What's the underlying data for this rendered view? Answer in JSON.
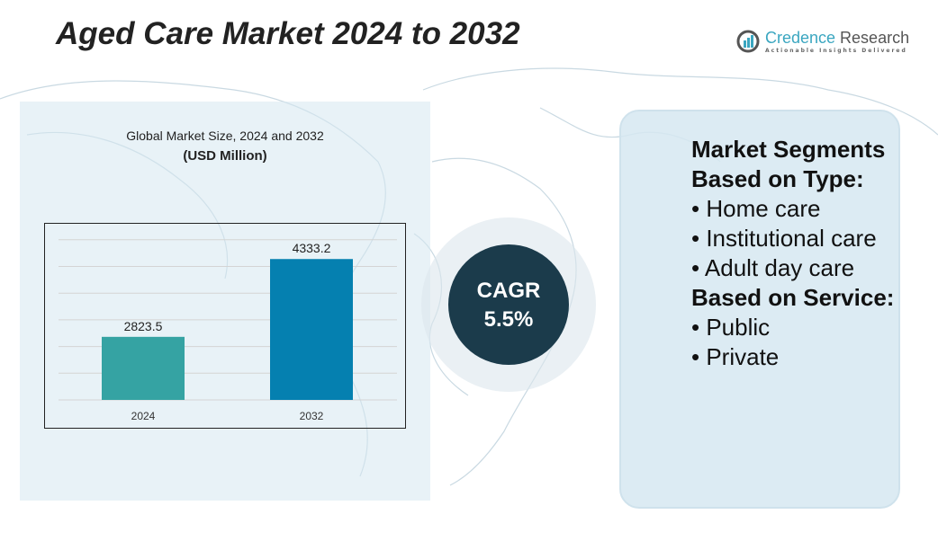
{
  "title": "Aged Care Market 2024 to 2032",
  "logo": {
    "name_a": "Credence",
    "name_b": " Research",
    "tagline": "Actionable Insights Delivered"
  },
  "cagr": {
    "label": "CAGR",
    "value": "5.5%"
  },
  "segments": {
    "heading": "Market Segments",
    "type_heading": "Based on Type:",
    "type_items": [
      "• Home care",
      "• Institutional care",
      "• Adult day care"
    ],
    "service_heading": "Based on Service:",
    "service_items": [
      "• Public",
      "• Private"
    ]
  },
  "chart_data": {
    "type": "bar",
    "title": "Global Market Size, 2024 and 2032",
    "subtitle": "(USD Million)",
    "categories": [
      "2024",
      "2032"
    ],
    "values": [
      2823.5,
      4333.2
    ],
    "value_labels": [
      "2823.5",
      "4333.2"
    ],
    "colors": [
      "#35a3a3",
      "#0580b0"
    ],
    "ylim": [
      1600,
      5000
    ],
    "grid": true
  }
}
